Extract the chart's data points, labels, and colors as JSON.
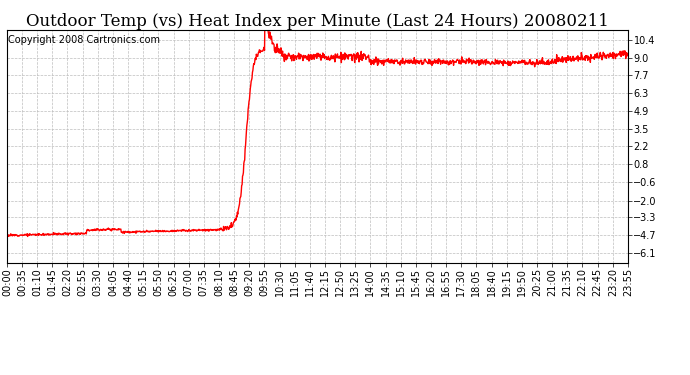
{
  "title": "Outdoor Temp (vs) Heat Index per Minute (Last 24 Hours) 20080211",
  "copyright": "Copyright 2008 Cartronics.com",
  "line_color": "#FF0000",
  "bg_color": "#FFFFFF",
  "plot_bg_color": "#FFFFFF",
  "grid_color": "#BEBEBE",
  "yticks": [
    10.4,
    9.0,
    7.7,
    6.3,
    4.9,
    3.5,
    2.2,
    0.8,
    -0.6,
    -2.0,
    -3.3,
    -4.7,
    -6.1
  ],
  "ylim": [
    -6.8,
    11.2
  ],
  "xtick_labels": [
    "00:00",
    "00:35",
    "01:10",
    "01:45",
    "02:20",
    "02:55",
    "03:30",
    "04:05",
    "04:40",
    "05:15",
    "05:50",
    "06:25",
    "07:00",
    "07:35",
    "08:10",
    "08:45",
    "09:20",
    "09:55",
    "10:30",
    "11:05",
    "11:40",
    "12:15",
    "12:50",
    "13:25",
    "14:00",
    "14:35",
    "15:10",
    "15:45",
    "16:20",
    "16:55",
    "17:30",
    "18:05",
    "18:40",
    "19:15",
    "19:50",
    "20:25",
    "21:00",
    "21:35",
    "22:10",
    "22:45",
    "23:20",
    "23:55"
  ],
  "title_fontsize": 12,
  "copyright_fontsize": 7,
  "tick_fontsize": 7,
  "line_width": 1.0
}
